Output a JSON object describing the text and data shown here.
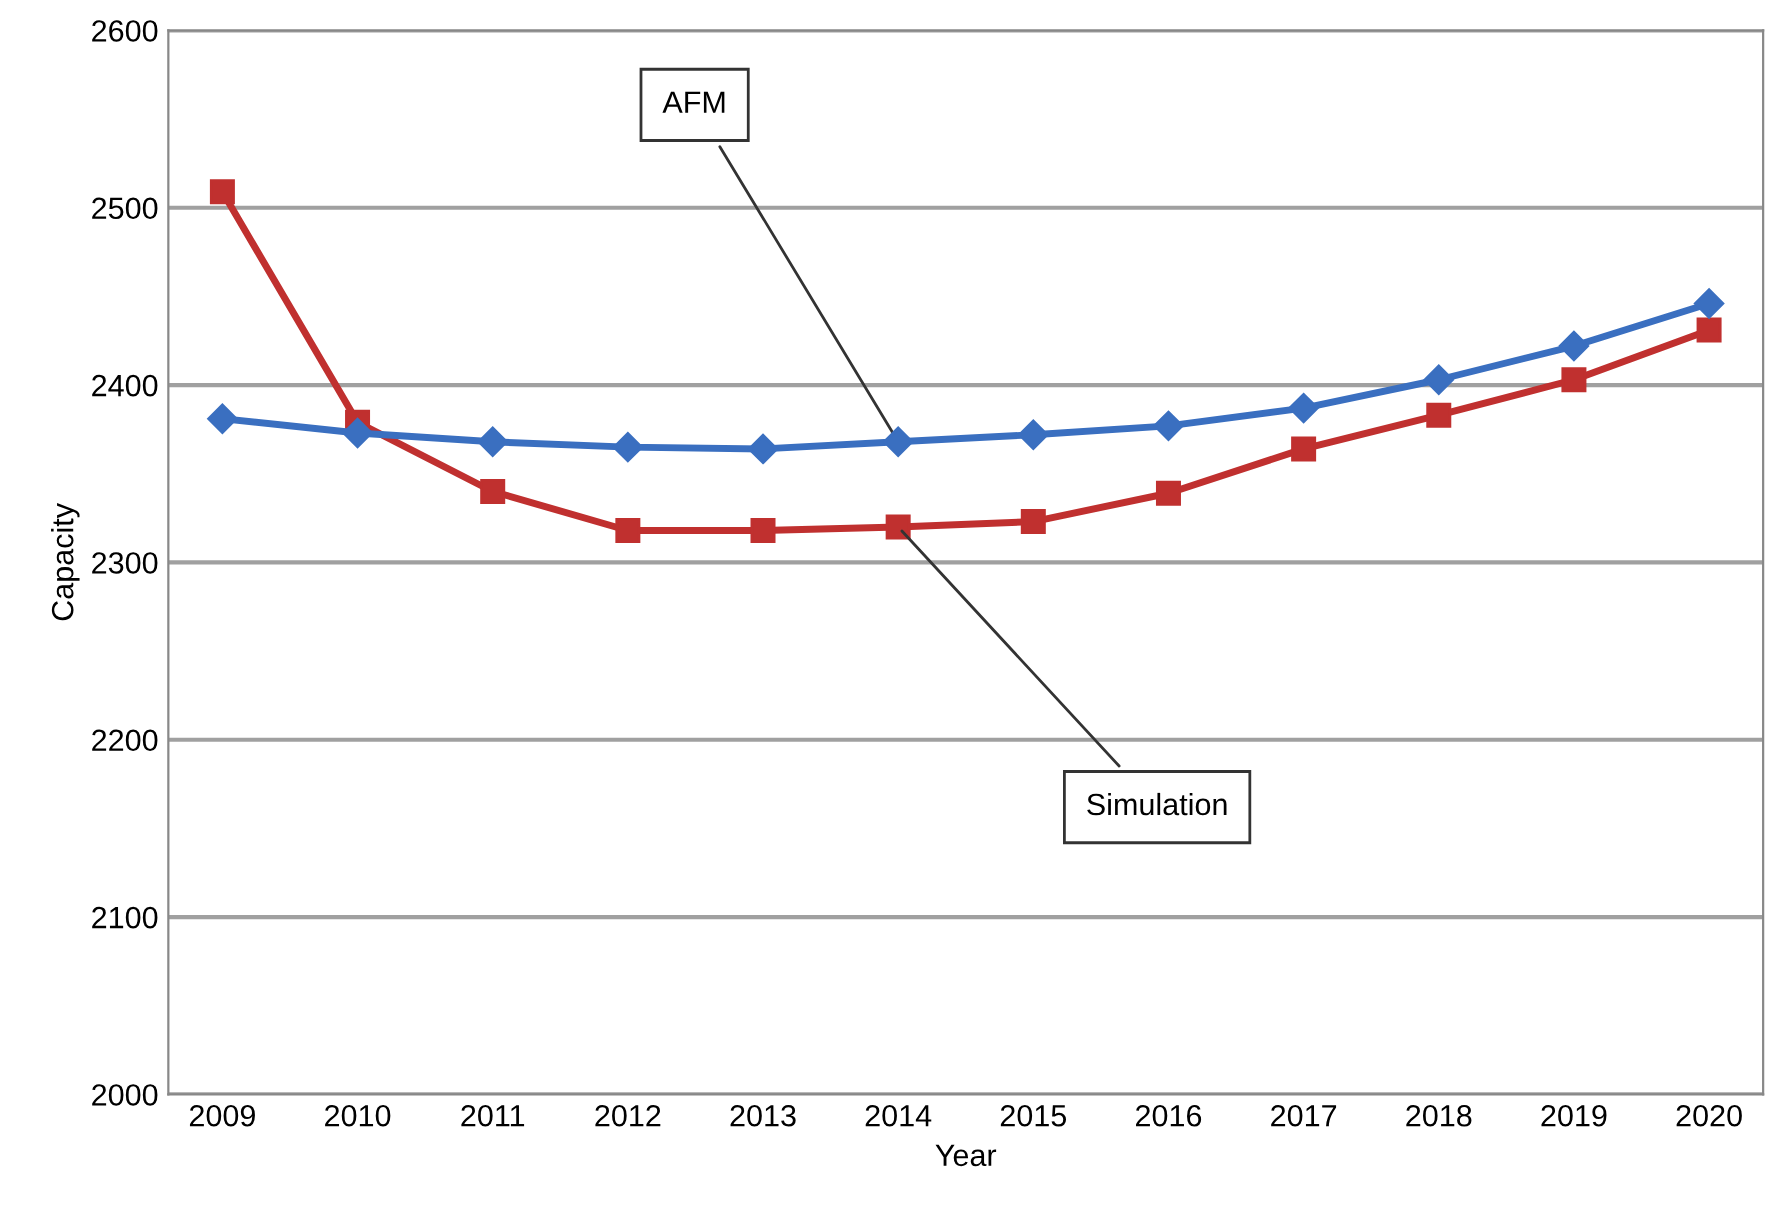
{
  "chart_data": {
    "type": "line",
    "xlabel": "Year",
    "ylabel": "Capacity",
    "categories": [
      "2009",
      "2010",
      "2011",
      "2012",
      "2013",
      "2014",
      "2015",
      "2016",
      "2017",
      "2018",
      "2019",
      "2020"
    ],
    "series": [
      {
        "name": "AFM",
        "color": "#3a6fc0",
        "marker": "diamond",
        "values": [
          2381,
          2373,
          2368,
          2365,
          2364,
          2368,
          2372,
          2377,
          2387,
          2403,
          2422,
          2446
        ]
      },
      {
        "name": "Simulation",
        "color": "#c0302f",
        "marker": "square",
        "values": [
          2509,
          2379,
          2340,
          2318,
          2318,
          2320,
          2323,
          2339,
          2364,
          2383,
          2403,
          2431
        ]
      }
    ],
    "ylim": [
      2000,
      2600
    ],
    "yticks": [
      2000,
      2100,
      2200,
      2300,
      2400,
      2500,
      2600
    ],
    "grid": "y",
    "legend": false,
    "line_style": "solid"
  }
}
